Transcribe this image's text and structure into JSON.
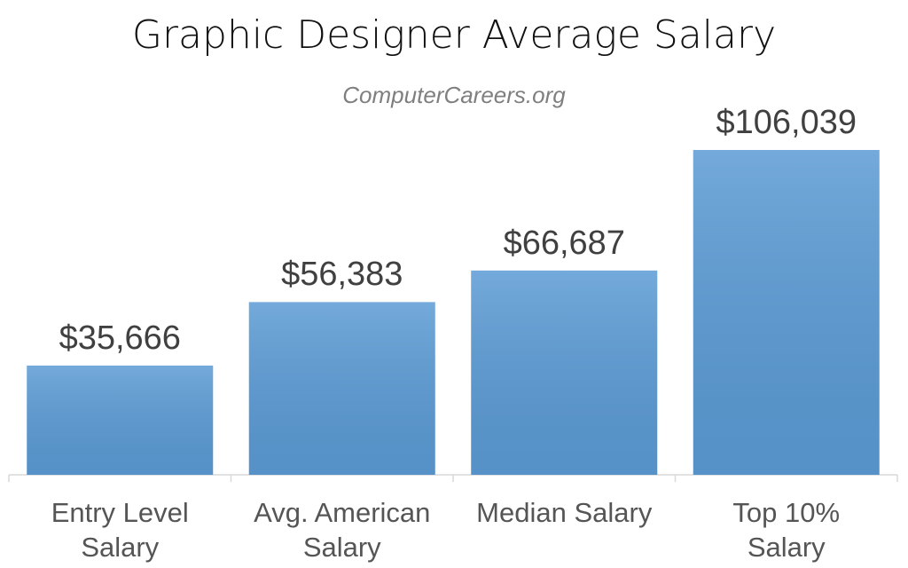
{
  "chart_data": {
    "type": "bar",
    "title": "Graphic Designer Average Salary",
    "subtitle": "ComputerCareers.org",
    "categories": [
      "Entry Level\nSalary",
      "Avg. American\nSalary",
      "Median Salary",
      "Top 10%\nSalary"
    ],
    "values": [
      35666,
      56383,
      66687,
      106039
    ],
    "value_labels": [
      "$35,666",
      "$56,383",
      "$66,687",
      "$106,039"
    ],
    "color": "#5b9bd5"
  }
}
